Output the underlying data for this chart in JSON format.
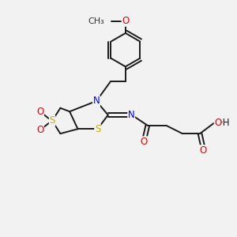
{
  "background_color": "#f2f2f2",
  "bond_color": "#1a1a1a",
  "bond_width": 1.4,
  "atom_colors": {
    "N": "#0000ee",
    "O": "#ee0000",
    "S": "#ccaa00",
    "C": "#1a1a1a",
    "H": "#1a1a1a"
  },
  "font_size": 8.5
}
